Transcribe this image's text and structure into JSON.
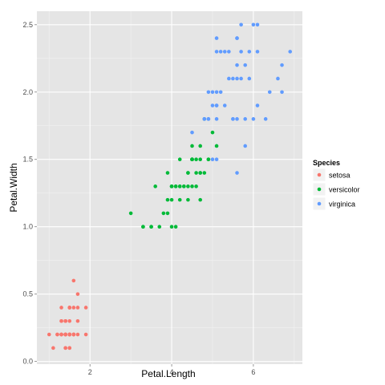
{
  "chart_data": {
    "type": "scatter",
    "xlabel": "Petal.Length",
    "ylabel": "Petal.Width",
    "xlim": [
      0.7,
      7.2
    ],
    "ylim": [
      -0.02,
      2.6
    ],
    "x_ticks": [
      2,
      4,
      6
    ],
    "x_tick_labels": [
      "2",
      "4",
      "6"
    ],
    "y_ticks": [
      0.0,
      0.5,
      1.0,
      1.5,
      2.0,
      2.5
    ],
    "y_tick_labels": [
      "0.0",
      "0.5",
      "1.0",
      "1.5",
      "2.0",
      "2.5"
    ],
    "grid": true,
    "legend": {
      "title": "Species",
      "placement": "right"
    },
    "series": [
      {
        "name": "setosa",
        "color": "#F8766D",
        "points": [
          [
            1.4,
            0.2
          ],
          [
            1.4,
            0.2
          ],
          [
            1.3,
            0.2
          ],
          [
            1.5,
            0.2
          ],
          [
            1.4,
            0.2
          ],
          [
            1.7,
            0.4
          ],
          [
            1.4,
            0.3
          ],
          [
            1.5,
            0.2
          ],
          [
            1.4,
            0.2
          ],
          [
            1.5,
            0.1
          ],
          [
            1.5,
            0.2
          ],
          [
            1.6,
            0.2
          ],
          [
            1.4,
            0.1
          ],
          [
            1.1,
            0.1
          ],
          [
            1.2,
            0.2
          ],
          [
            1.5,
            0.4
          ],
          [
            1.3,
            0.4
          ],
          [
            1.4,
            0.3
          ],
          [
            1.7,
            0.3
          ],
          [
            1.5,
            0.3
          ],
          [
            1.7,
            0.2
          ],
          [
            1.5,
            0.4
          ],
          [
            1.0,
            0.2
          ],
          [
            1.7,
            0.5
          ],
          [
            1.9,
            0.2
          ],
          [
            1.6,
            0.2
          ],
          [
            1.6,
            0.4
          ],
          [
            1.5,
            0.2
          ],
          [
            1.4,
            0.2
          ],
          [
            1.6,
            0.2
          ],
          [
            1.6,
            0.2
          ],
          [
            1.5,
            0.4
          ],
          [
            1.5,
            0.1
          ],
          [
            1.4,
            0.2
          ],
          [
            1.5,
            0.2
          ],
          [
            1.2,
            0.2
          ],
          [
            1.3,
            0.2
          ],
          [
            1.4,
            0.1
          ],
          [
            1.3,
            0.2
          ],
          [
            1.5,
            0.2
          ],
          [
            1.3,
            0.3
          ],
          [
            1.3,
            0.3
          ],
          [
            1.3,
            0.2
          ],
          [
            1.6,
            0.6
          ],
          [
            1.9,
            0.4
          ],
          [
            1.4,
            0.3
          ],
          [
            1.6,
            0.2
          ],
          [
            1.4,
            0.2
          ],
          [
            1.5,
            0.2
          ],
          [
            1.4,
            0.2
          ]
        ]
      },
      {
        "name": "versicolor",
        "color": "#00BA38",
        "points": [
          [
            4.7,
            1.4
          ],
          [
            4.5,
            1.5
          ],
          [
            4.9,
            1.5
          ],
          [
            4.0,
            1.3
          ],
          [
            4.6,
            1.5
          ],
          [
            4.5,
            1.3
          ],
          [
            4.7,
            1.6
          ],
          [
            3.3,
            1.0
          ],
          [
            4.6,
            1.3
          ],
          [
            3.9,
            1.4
          ],
          [
            3.5,
            1.0
          ],
          [
            4.2,
            1.5
          ],
          [
            4.0,
            1.0
          ],
          [
            4.7,
            1.4
          ],
          [
            3.6,
            1.3
          ],
          [
            4.4,
            1.4
          ],
          [
            4.5,
            1.5
          ],
          [
            4.1,
            1.0
          ],
          [
            4.5,
            1.5
          ],
          [
            3.9,
            1.1
          ],
          [
            4.8,
            1.8
          ],
          [
            4.0,
            1.3
          ],
          [
            4.9,
            1.5
          ],
          [
            4.7,
            1.2
          ],
          [
            4.3,
            1.3
          ],
          [
            4.4,
            1.4
          ],
          [
            4.8,
            1.4
          ],
          [
            5.0,
            1.7
          ],
          [
            4.5,
            1.5
          ],
          [
            3.5,
            1.0
          ],
          [
            3.8,
            1.1
          ],
          [
            3.7,
            1.0
          ],
          [
            3.9,
            1.2
          ],
          [
            5.1,
            1.6
          ],
          [
            4.5,
            1.5
          ],
          [
            4.5,
            1.6
          ],
          [
            4.7,
            1.5
          ],
          [
            4.4,
            1.3
          ],
          [
            4.1,
            1.3
          ],
          [
            4.0,
            1.3
          ],
          [
            4.4,
            1.2
          ],
          [
            4.6,
            1.4
          ],
          [
            4.0,
            1.2
          ],
          [
            3.3,
            1.0
          ],
          [
            4.2,
            1.3
          ],
          [
            4.2,
            1.2
          ],
          [
            4.2,
            1.3
          ],
          [
            4.3,
            1.3
          ],
          [
            3.0,
            1.1
          ],
          [
            4.1,
            1.3
          ]
        ]
      },
      {
        "name": "virginica",
        "color": "#619CFF",
        "points": [
          [
            6.0,
            2.5
          ],
          [
            5.1,
            1.9
          ],
          [
            5.9,
            2.1
          ],
          [
            5.6,
            1.8
          ],
          [
            5.8,
            2.2
          ],
          [
            6.6,
            2.1
          ],
          [
            4.5,
            1.7
          ],
          [
            6.3,
            1.8
          ],
          [
            5.8,
            1.8
          ],
          [
            6.1,
            2.5
          ],
          [
            5.1,
            2.0
          ],
          [
            5.3,
            1.9
          ],
          [
            5.5,
            2.1
          ],
          [
            5.0,
            2.0
          ],
          [
            5.1,
            2.4
          ],
          [
            5.3,
            2.3
          ],
          [
            5.5,
            1.8
          ],
          [
            6.7,
            2.2
          ],
          [
            6.9,
            2.3
          ],
          [
            5.0,
            1.5
          ],
          [
            5.7,
            2.3
          ],
          [
            4.9,
            2.0
          ],
          [
            6.7,
            2.0
          ],
          [
            4.9,
            1.8
          ],
          [
            5.7,
            2.1
          ],
          [
            6.0,
            1.8
          ],
          [
            4.8,
            1.8
          ],
          [
            4.9,
            1.8
          ],
          [
            5.6,
            2.1
          ],
          [
            5.8,
            1.6
          ],
          [
            6.1,
            1.9
          ],
          [
            6.4,
            2.0
          ],
          [
            5.6,
            2.2
          ],
          [
            5.1,
            1.5
          ],
          [
            5.6,
            1.4
          ],
          [
            6.1,
            2.3
          ],
          [
            5.6,
            2.4
          ],
          [
            5.5,
            1.8
          ],
          [
            4.8,
            1.8
          ],
          [
            5.4,
            2.1
          ],
          [
            5.6,
            2.4
          ],
          [
            5.1,
            2.3
          ],
          [
            5.1,
            1.9
          ],
          [
            5.9,
            2.3
          ],
          [
            5.7,
            2.5
          ],
          [
            5.2,
            2.3
          ],
          [
            5.0,
            1.9
          ],
          [
            5.2,
            2.0
          ],
          [
            5.4,
            2.3
          ],
          [
            5.1,
            1.8
          ]
        ]
      }
    ]
  }
}
